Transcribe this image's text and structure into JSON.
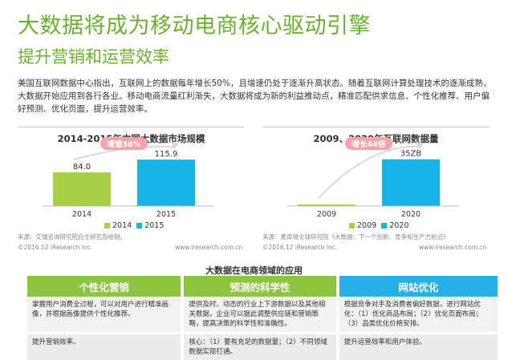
{
  "title": "大数据将成为移动电商核心驱动引擎",
  "subtitle": "提升营销和运营效率",
  "intro": "美国互联网数据中心指出，互联网上的数据每年增长50%，且增速仍处于逐渐升高状态。随着互联网计算处理技术的逐渐成熟，大数据开始应用到各行各业。移动电商流量红利渐失，大数据将成为新的利益推动点，精准匹配供求信息、个性化推荐、用户偏好预测、优化页面，提升运营效率。",
  "charts": [
    {
      "title": "2014-2015年中国大数据市场规模",
      "badge": "增速38%",
      "source": "来源：艾瑞咨询研究院自主研究及绘制。",
      "copyright": "©2016.12 iResearch Inc.",
      "site": "www.iresearch.com.cn"
    },
    {
      "title": "2009、2020年互联网数据量",
      "badge": "增长44倍",
      "source": "来源：麦肯锡全球研究院《大数据：下一个创新、竞争和生产力前沿》",
      "copyright": "©2016.12 iResearch Inc.",
      "site": "www.iresearch.com.cn"
    }
  ],
  "chart_data": [
    {
      "type": "bar",
      "categories": [
        "2014",
        "2015"
      ],
      "values": [
        84.0,
        115.9
      ],
      "labels": [
        "84.0",
        "115.9"
      ],
      "legend": [
        "2014",
        "2015"
      ],
      "colors": [
        "#a8cf45",
        "#17b4e8"
      ],
      "ylim": [
        0,
        140
      ],
      "title": "2014-2015年中国大数据市场规模",
      "annotation": "增速38%"
    },
    {
      "type": "bar",
      "categories": [
        "2009",
        "2020"
      ],
      "values": [
        0.8,
        35
      ],
      "labels": [
        "",
        "35ZB"
      ],
      "legend": [
        "2009",
        "2020"
      ],
      "colors": [
        "#a8cf45",
        "#17b4e8"
      ],
      "ylim": [
        0,
        42
      ],
      "title": "2009、2020年互联网数据量",
      "annotation": "增长44倍"
    }
  ],
  "section_title": "大数据在电商领域的应用",
  "table": {
    "headers": [
      "个性化营销",
      "预测的科学性",
      "网站优化"
    ],
    "header_colors": [
      "#8cc540",
      "#8cc540",
      "#25b1e6"
    ],
    "row1": [
      "掌握用户消费全过程，可以对用户进行精准画像，并根据画像提供个性化推荐。",
      "提供及时、动态的行业上下游数据以及其他相关数据，企业可以据此调整供应链和营销策略，提高决策的科学性和准确性。",
      "根据竞争对手及消费者偏好数据，进行网站优化：（1）优化商品布局；（2）优化页面布局；（3）品类优化价格安排。"
    ],
    "row2": [
      "提升营销效率。",
      "核心：（1）要有充足的数据量；（2）不同领域数据实现打通。",
      "提升运营效率和用户体验。"
    ]
  }
}
